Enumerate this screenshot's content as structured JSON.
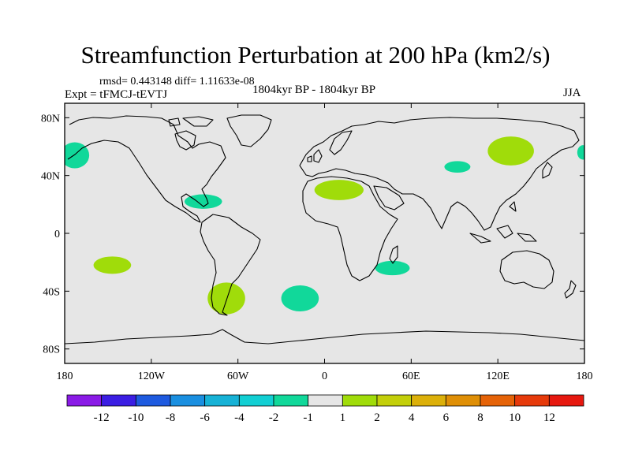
{
  "title": "Streamfunction Perturbation at 200 hPa (km2/s)",
  "stats_line": "rmsd= 0.443148 diff= 1.11633e-08",
  "experiment": "Expt = tFMCJ-tEVTJ",
  "period": "1804kyr BP - 1804kyr BP",
  "season": "JJA",
  "map": {
    "lon_range": [
      -180,
      180
    ],
    "lat_range": [
      -90,
      90
    ],
    "y_ticks": [
      {
        "lat": 80,
        "label": "80N"
      },
      {
        "lat": 40,
        "label": "40N"
      },
      {
        "lat": 0,
        "label": "0"
      },
      {
        "lat": -40,
        "label": "40S"
      },
      {
        "lat": -80,
        "label": "80S"
      }
    ],
    "x_ticks": [
      {
        "lon": -180,
        "label": "180"
      },
      {
        "lon": -120,
        "label": "120W"
      },
      {
        "lon": -60,
        "label": "60W"
      },
      {
        "lon": 0,
        "label": "0"
      },
      {
        "lon": 60,
        "label": "60E"
      },
      {
        "lon": 120,
        "label": "120E"
      },
      {
        "lon": 180,
        "label": "180"
      }
    ],
    "background_color": "#e6e6e6",
    "anomalies": [
      {
        "name": "north-pacific-negative",
        "lon": -173,
        "lat": 54,
        "rx": 10,
        "ry": 9,
        "sign": "negative",
        "color": "#11d89a"
      },
      {
        "name": "north-pacific-east-edge-negative",
        "lon": 179,
        "lat": 56,
        "rx": 4,
        "ry": 5,
        "sign": "negative",
        "color": "#11d89a"
      },
      {
        "name": "caribbean-negative",
        "lon": -84,
        "lat": 22,
        "rx": 13,
        "ry": 5,
        "sign": "negative",
        "color": "#11d89a"
      },
      {
        "name": "north-africa-positive",
        "lon": 10,
        "lat": 30,
        "rx": 17,
        "ry": 7,
        "sign": "positive",
        "color": "#a0dc0a"
      },
      {
        "name": "central-asia-negative",
        "lon": 92,
        "lat": 46,
        "rx": 9,
        "ry": 4,
        "sign": "negative",
        "color": "#11d89a"
      },
      {
        "name": "mongolia-positive",
        "lon": 129,
        "lat": 57,
        "rx": 16,
        "ry": 10,
        "sign": "positive",
        "color": "#a0dc0a"
      },
      {
        "name": "south-pacific-positive",
        "lon": -147,
        "lat": -22,
        "rx": 13,
        "ry": 6,
        "sign": "positive",
        "color": "#a0dc0a"
      },
      {
        "name": "madagascar-negative",
        "lon": 47,
        "lat": -24,
        "rx": 12,
        "ry": 5,
        "sign": "negative",
        "color": "#11d89a"
      },
      {
        "name": "patagonia-positive",
        "lon": -68,
        "lat": -45,
        "rx": 13,
        "ry": 11,
        "sign": "positive",
        "color": "#a0dc0a"
      },
      {
        "name": "south-atlantic-negative",
        "lon": -17,
        "lat": -45,
        "rx": 13,
        "ry": 9,
        "sign": "negative",
        "color": "#11d89a"
      }
    ]
  },
  "colorbar": {
    "colors": [
      "#8a1be6",
      "#3b1ee3",
      "#1e5adf",
      "#1a8fe0",
      "#17b2d6",
      "#12cfd3",
      "#11d89a",
      "#e6e6e6",
      "#a0dc0a",
      "#c3cf0a",
      "#dcb00a",
      "#df8f06",
      "#e56308",
      "#e63a0b",
      "#e6180f"
    ],
    "labels": [
      "-12",
      "-10",
      "-8",
      "-6",
      "-4",
      "-2",
      "-1",
      "1",
      "2",
      "4",
      "6",
      "8",
      "10",
      "12"
    ]
  }
}
